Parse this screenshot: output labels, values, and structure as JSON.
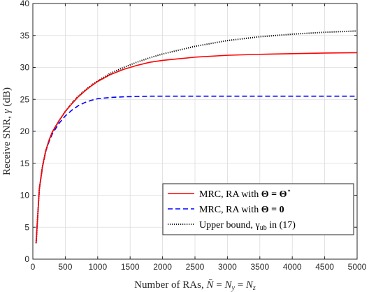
{
  "chart_data": {
    "type": "line",
    "xlabel": "Number of RAs, N̄ = N_y = N_z",
    "ylabel": "Receive SNR, γ (dB)",
    "xlim": [
      0,
      5000
    ],
    "ylim": [
      0,
      40
    ],
    "xticks": [
      0,
      500,
      1000,
      1500,
      2000,
      2500,
      3000,
      3500,
      4000,
      4500,
      5000
    ],
    "yticks": [
      0,
      5,
      10,
      15,
      20,
      25,
      30,
      35,
      40
    ],
    "grid": true,
    "legend_position": "bottom-right",
    "x": [
      50,
      100,
      150,
      200,
      250,
      300,
      400,
      500,
      600,
      700,
      800,
      900,
      1000,
      1200,
      1400,
      1600,
      1800,
      2000,
      2500,
      3000,
      3500,
      4000,
      4500,
      5000
    ],
    "series": [
      {
        "name": "MRC, RA with Θ = Θ*",
        "legend_plain": "MRC, RA with ",
        "legend_math": "Θ = Θ",
        "legend_sup": "⋆",
        "color": "#ff0000",
        "dash": "solid",
        "values": [
          2.5,
          11.0,
          14.6,
          17.0,
          18.6,
          19.9,
          21.6,
          23.1,
          24.3,
          25.4,
          26.3,
          27.1,
          27.8,
          28.9,
          29.7,
          30.3,
          30.8,
          31.1,
          31.6,
          31.9,
          32.05,
          32.15,
          32.25,
          32.3
        ]
      },
      {
        "name": "MRC, RA with Θ = 0",
        "legend_plain": "MRC, RA with ",
        "legend_math": "Θ = 0",
        "color": "#0000ff",
        "dash": "dashed",
        "values": [
          2.5,
          11.0,
          14.5,
          16.9,
          18.4,
          19.6,
          21.2,
          22.4,
          23.3,
          24.0,
          24.5,
          24.85,
          25.1,
          25.3,
          25.4,
          25.45,
          25.5,
          25.5,
          25.5,
          25.5,
          25.5,
          25.5,
          25.5,
          25.5
        ]
      },
      {
        "name": "Upper bound, γ_ub in (17)",
        "legend_plain": "Upper bound, γ",
        "legend_sub": "ub",
        "legend_tail": " in (17)",
        "color": "#000000",
        "dash": "dotted",
        "values": [
          2.5,
          11.0,
          14.6,
          17.0,
          18.6,
          19.9,
          21.6,
          23.1,
          24.4,
          25.5,
          26.4,
          27.2,
          27.9,
          29.1,
          30.0,
          30.8,
          31.5,
          32.1,
          33.3,
          34.2,
          34.8,
          35.2,
          35.5,
          35.7
        ]
      }
    ]
  }
}
